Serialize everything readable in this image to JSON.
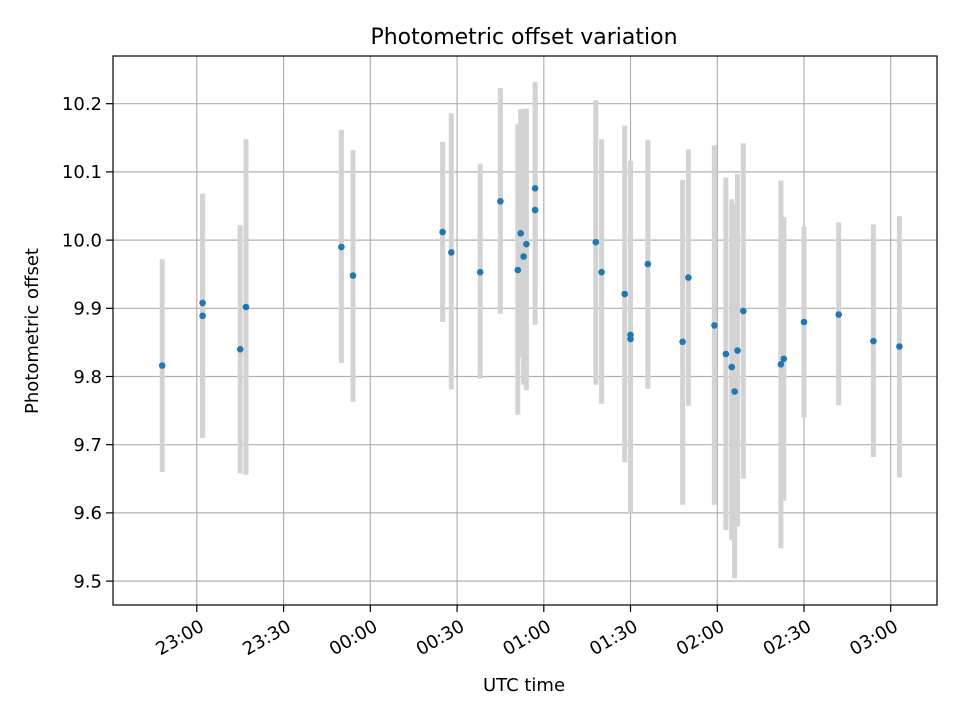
{
  "chart_data": {
    "type": "scatter",
    "title": "Photometric offset variation",
    "xlabel": "UTC time",
    "ylabel": "Photometric offset",
    "x_unit": "UTC hh:mm (times after 24:00 are on the following day)",
    "xlim": [
      "22:31",
      "03:16"
    ],
    "ylim": [
      9.465,
      10.27
    ],
    "x_ticks": [
      "23:00",
      "23:30",
      "00:00",
      "00:30",
      "01:00",
      "01:30",
      "02:00",
      "02:30",
      "03:00"
    ],
    "y_ticks": [
      9.5,
      9.6,
      9.7,
      9.8,
      9.9,
      10.0,
      10.1,
      10.2
    ],
    "y_tick_labels": [
      "9.5",
      "9.6",
      "9.7",
      "9.8",
      "9.9",
      "10.0",
      "10.1",
      "10.2"
    ],
    "grid": true,
    "colors": {
      "points": "#1f77b4",
      "error_bars": "#d3d3d3",
      "grid": "#b0b0b0"
    },
    "points": [
      {
        "x": "22:48",
        "y": 9.816,
        "lo": 9.66,
        "hi": 9.972
      },
      {
        "x": "23:02",
        "y": 9.908,
        "lo": 9.71,
        "hi": 10.068
      },
      {
        "x": "23:02",
        "y": 9.889,
        "lo": 9.71,
        "hi": 10.068
      },
      {
        "x": "23:15",
        "y": 9.84,
        "lo": 9.658,
        "hi": 10.022
      },
      {
        "x": "23:17",
        "y": 9.902,
        "lo": 9.656,
        "hi": 10.148
      },
      {
        "x": "23:50",
        "y": 9.99,
        "lo": 9.82,
        "hi": 10.162
      },
      {
        "x": "23:54",
        "y": 9.948,
        "lo": 9.763,
        "hi": 10.132
      },
      {
        "x": "00:25",
        "y": 10.012,
        "lo": 9.88,
        "hi": 10.144
      },
      {
        "x": "00:28",
        "y": 9.982,
        "lo": 9.781,
        "hi": 10.186
      },
      {
        "x": "00:38",
        "y": 9.953,
        "lo": 9.797,
        "hi": 10.112
      },
      {
        "x": "00:45",
        "y": 10.057,
        "lo": 9.892,
        "hi": 10.223
      },
      {
        "x": "00:51",
        "y": 9.956,
        "lo": 9.744,
        "hi": 10.17
      },
      {
        "x": "00:52",
        "y": 10.01,
        "lo": 9.828,
        "hi": 10.192
      },
      {
        "x": "00:53",
        "y": 9.976,
        "lo": 9.788,
        "hi": 10.192
      },
      {
        "x": "00:54",
        "y": 9.994,
        "lo": 9.78,
        "hi": 10.193
      },
      {
        "x": "00:57",
        "y": 10.076,
        "lo": 9.94,
        "hi": 10.232
      },
      {
        "x": "00:57",
        "y": 10.044,
        "lo": 9.876,
        "hi": 10.212
      },
      {
        "x": "01:18",
        "y": 9.997,
        "lo": 9.788,
        "hi": 10.205
      },
      {
        "x": "01:20",
        "y": 9.953,
        "lo": 9.76,
        "hi": 10.148
      },
      {
        "x": "01:28",
        "y": 9.921,
        "lo": 9.674,
        "hi": 10.168
      },
      {
        "x": "01:30",
        "y": 9.861,
        "lo": 9.6,
        "hi": 10.116
      },
      {
        "x": "01:30",
        "y": 9.855,
        "lo": 9.6,
        "hi": 10.116
      },
      {
        "x": "01:36",
        "y": 9.965,
        "lo": 9.782,
        "hi": 10.147
      },
      {
        "x": "01:48",
        "y": 9.851,
        "lo": 9.612,
        "hi": 10.088
      },
      {
        "x": "01:50",
        "y": 9.945,
        "lo": 9.757,
        "hi": 10.133
      },
      {
        "x": "01:59",
        "y": 9.875,
        "lo": 9.612,
        "hi": 10.139
      },
      {
        "x": "02:03",
        "y": 9.833,
        "lo": 9.575,
        "hi": 10.092
      },
      {
        "x": "02:05",
        "y": 9.814,
        "lo": 9.56,
        "hi": 10.06
      },
      {
        "x": "02:06",
        "y": 9.778,
        "lo": 9.504,
        "hi": 10.052
      },
      {
        "x": "02:07",
        "y": 9.838,
        "lo": 9.58,
        "hi": 10.097
      },
      {
        "x": "02:09",
        "y": 9.896,
        "lo": 9.65,
        "hi": 10.142
      },
      {
        "x": "02:22",
        "y": 9.818,
        "lo": 9.548,
        "hi": 10.087
      },
      {
        "x": "02:23",
        "y": 9.826,
        "lo": 9.618,
        "hi": 10.034
      },
      {
        "x": "02:30",
        "y": 9.88,
        "lo": 9.74,
        "hi": 10.02
      },
      {
        "x": "02:42",
        "y": 9.891,
        "lo": 9.758,
        "hi": 10.026
      },
      {
        "x": "02:54",
        "y": 9.852,
        "lo": 9.682,
        "hi": 10.023
      },
      {
        "x": "03:03",
        "y": 9.844,
        "lo": 9.652,
        "hi": 10.035
      }
    ]
  }
}
